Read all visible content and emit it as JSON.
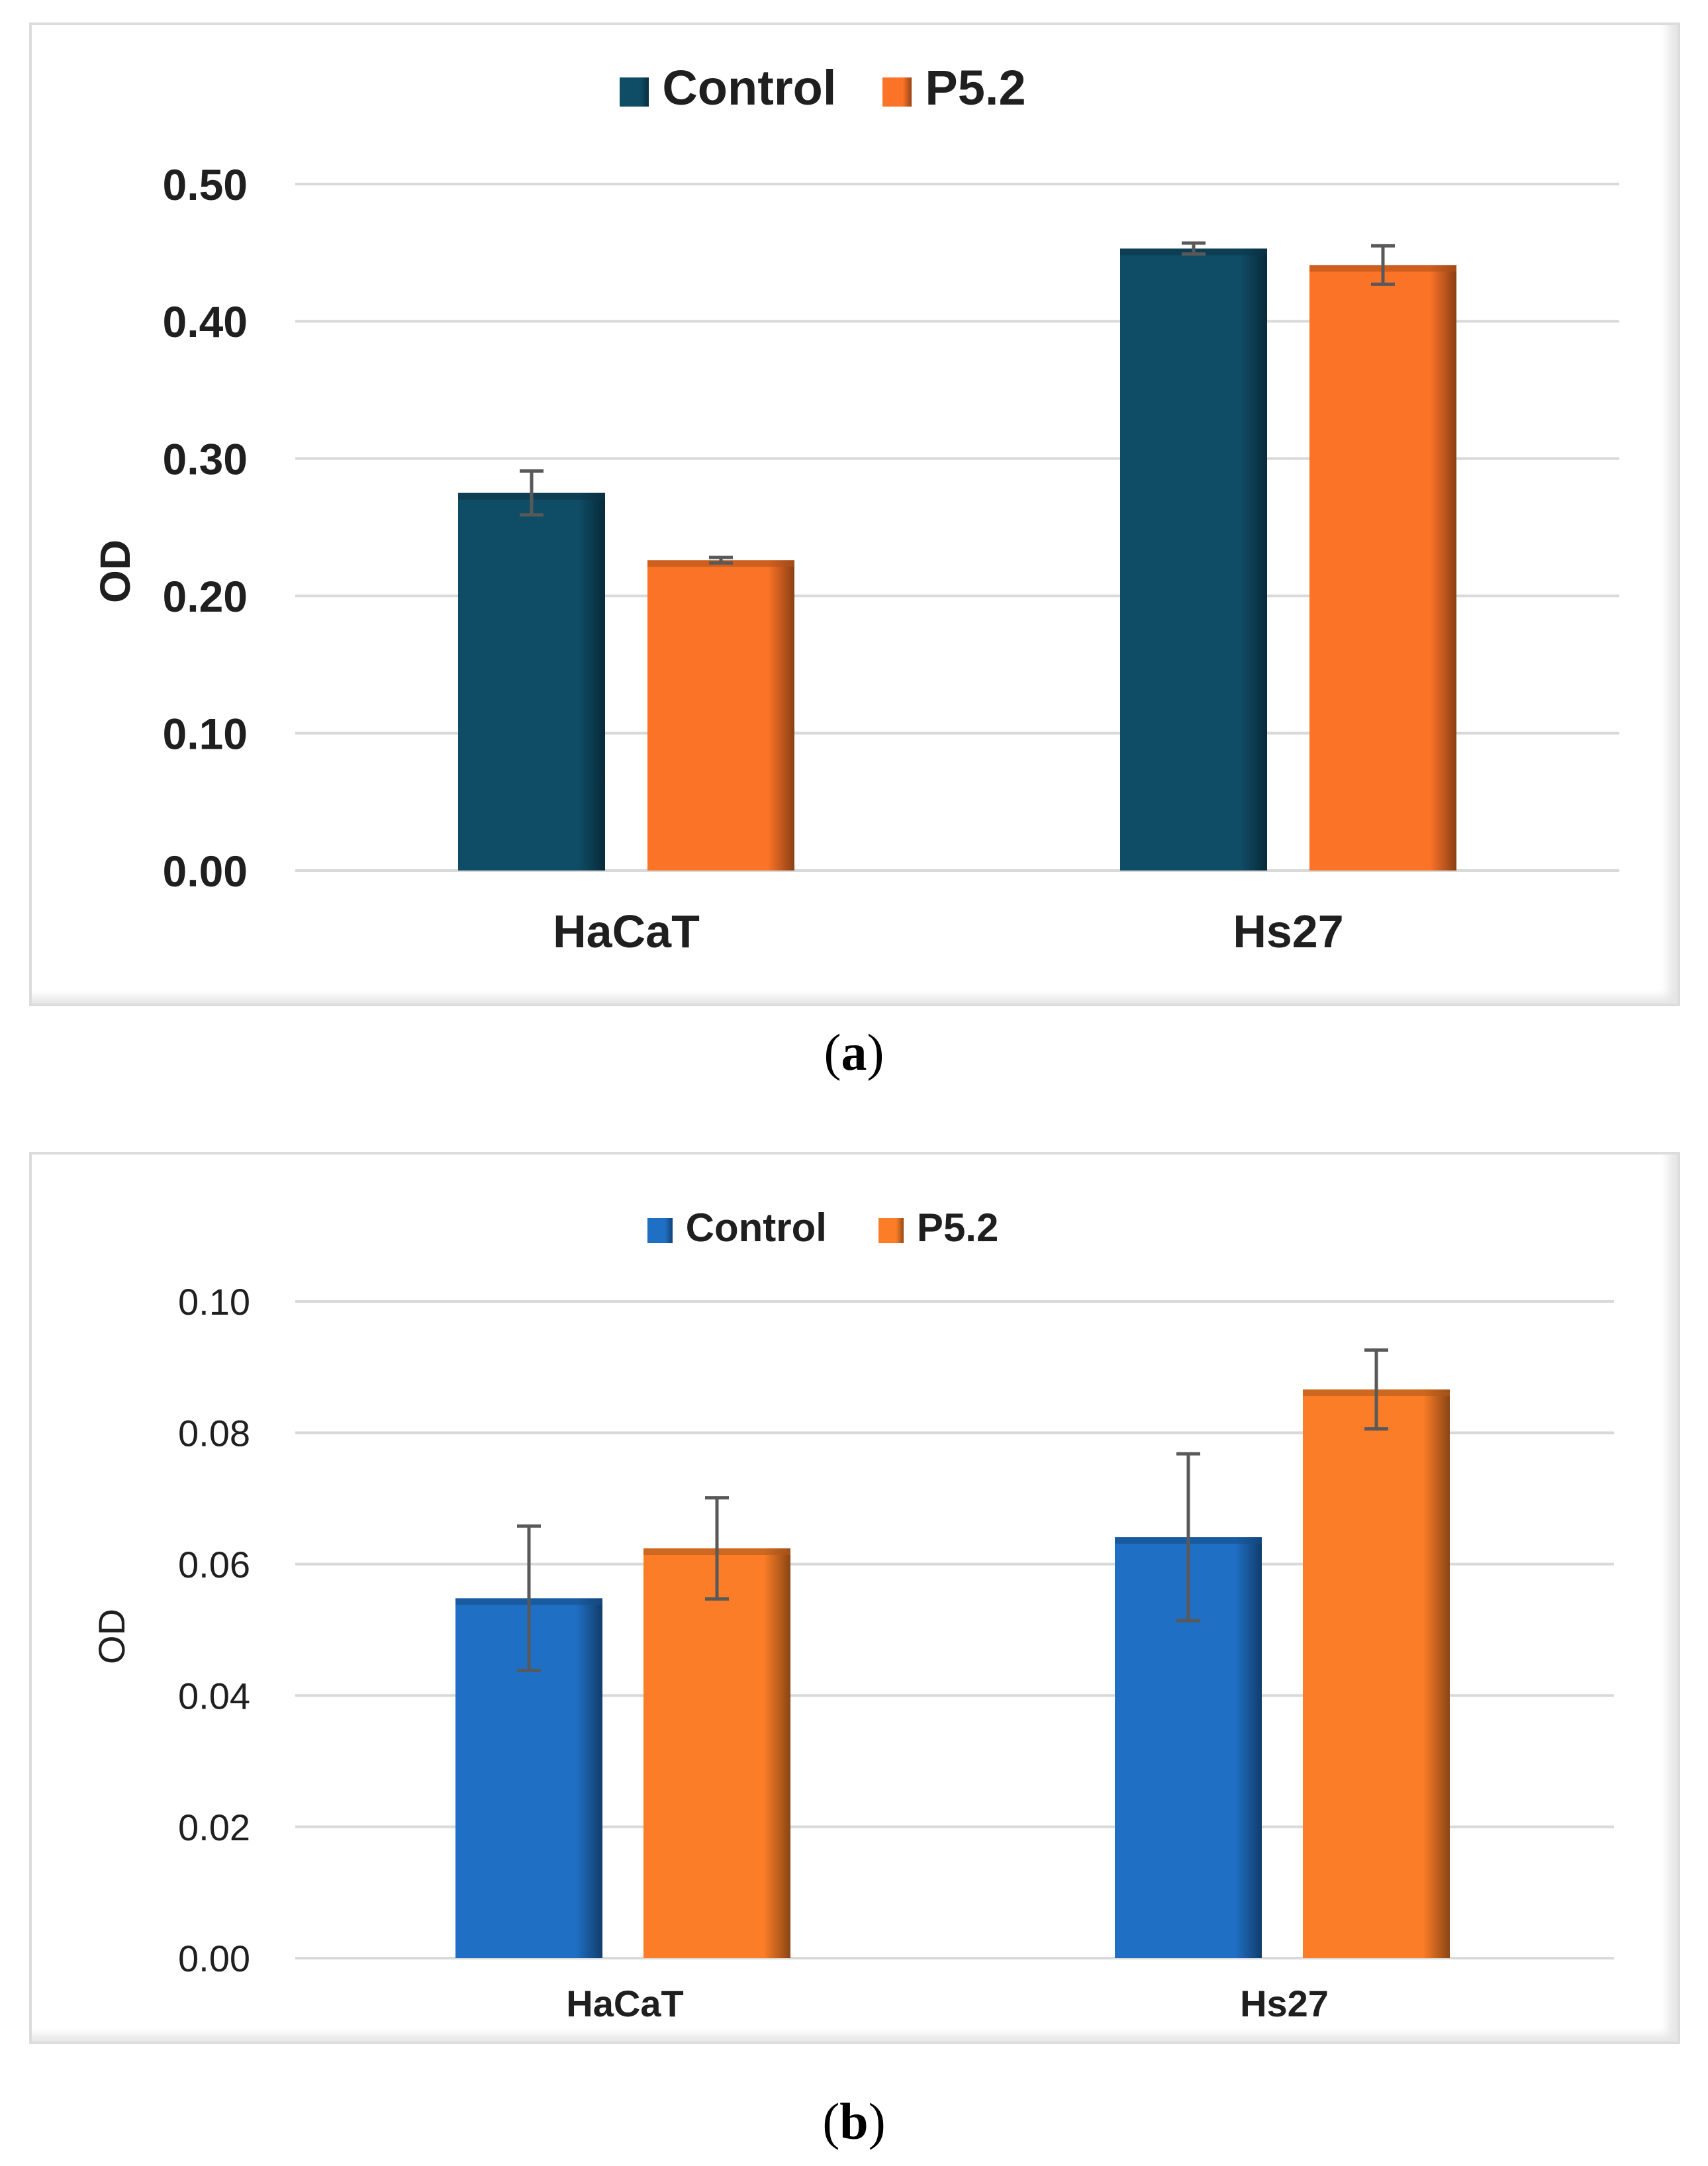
{
  "chart_data": [
    {
      "id": "a",
      "type": "bar",
      "panel_label": "a",
      "ylabel": "OD",
      "categories": [
        "HaCaT",
        "Hs27"
      ],
      "ylim": [
        0,
        0.5
      ],
      "yticks": [
        "0.00",
        "0.10",
        "0.20",
        "0.30",
        "0.40",
        "0.50"
      ],
      "ytick_values": [
        0,
        0.1,
        0.2,
        0.3,
        0.4,
        0.5
      ],
      "grid": true,
      "legend_position": "top-center",
      "series": [
        {
          "name": "Control",
          "color": "#0f4c66",
          "values": [
            0.275,
            0.453
          ],
          "errors": [
            0.016,
            0.004
          ]
        },
        {
          "name": "P5.2",
          "color": "#fb7327",
          "values": [
            0.226,
            0.441
          ],
          "errors": [
            0.002,
            0.014
          ]
        }
      ]
    },
    {
      "id": "b",
      "type": "bar",
      "panel_label": "b",
      "ylabel": "OD",
      "categories": [
        "HaCaT",
        "Hs27"
      ],
      "ylim": [
        0,
        0.1
      ],
      "yticks": [
        "0.00",
        "0.02",
        "0.04",
        "0.06",
        "0.08",
        "0.10"
      ],
      "ytick_values": [
        0,
        0.02,
        0.04,
        0.06,
        0.08,
        0.1
      ],
      "grid": true,
      "legend_position": "top-center",
      "series": [
        {
          "name": "Control",
          "color": "#1f6fc4",
          "values": [
            0.0548,
            0.0641
          ],
          "errors": [
            0.011,
            0.0127
          ]
        },
        {
          "name": "P5.2",
          "color": "#fb7d27",
          "values": [
            0.0624,
            0.0866
          ],
          "errors": [
            0.0077,
            0.006
          ]
        }
      ]
    }
  ]
}
